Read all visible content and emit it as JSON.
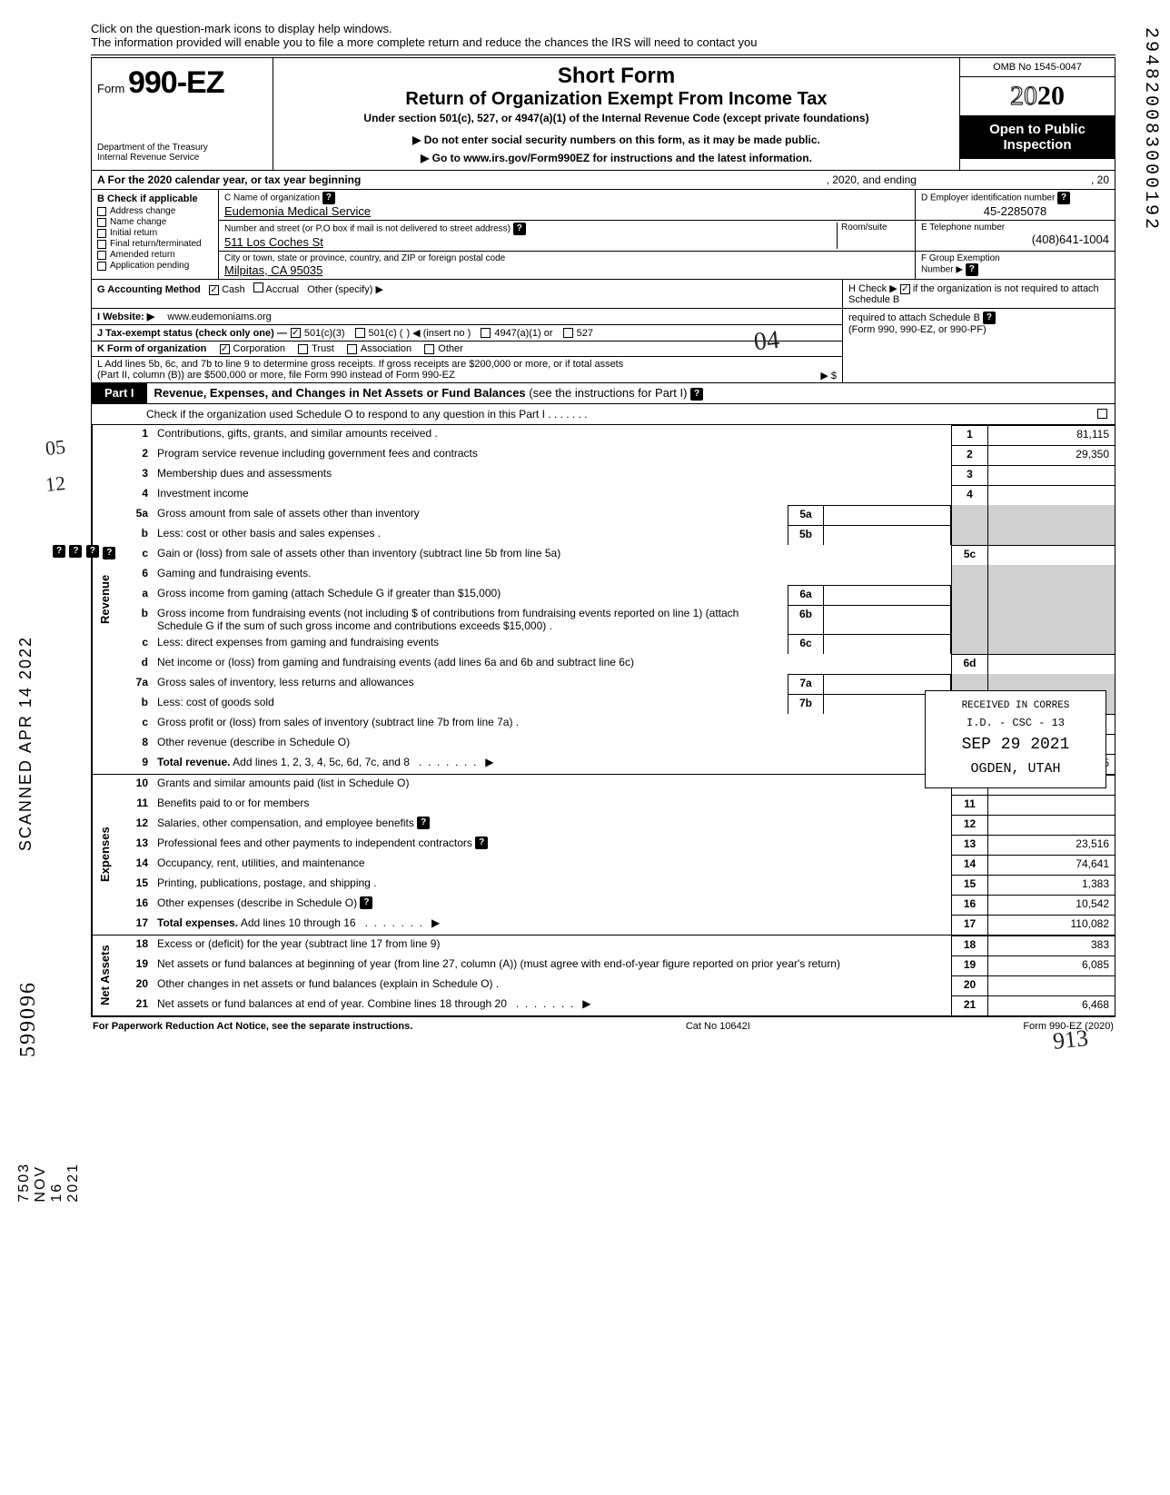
{
  "help_banner_l1": "Click on the question-mark icons to display help windows.",
  "help_banner_l2": "The information provided will enable you to file a more complete return and reduce the chances the IRS will need to contact you",
  "form_prefix": "Form",
  "form_number": "990-EZ",
  "dept1": "Department of the Treasury",
  "dept2": "Internal Revenue Service",
  "title1": "Short Form",
  "title2": "Return of Organization Exempt From Income Tax",
  "title3": "Under section 501(c), 527, or 4947(a)(1) of the Internal Revenue Code (except private foundations)",
  "title4": "▶ Do not enter social security numbers on this form, as it may be made public.",
  "title5": "▶ Go to www.irs.gov/Form990EZ for instructions and the latest information.",
  "omb": "OMB No  1545-0047",
  "year_outline": "20",
  "year_bold": "20",
  "open_pub": "Open to Public Inspection",
  "row_a": "A  For the 2020 calendar year, or tax year beginning",
  "row_a_mid": ", 2020, and ending",
  "row_a_end": ", 20",
  "b_hdr": "B  Check if applicable",
  "b_items": [
    "Address change",
    "Name change",
    "Initial return",
    "Final return/terminated",
    "Amended return",
    "Application pending"
  ],
  "c_lbl": "C  Name of organization",
  "c_val": "Eudemonia Medical Service",
  "c_addr_lbl": "Number and street (or P.O  box if mail is not delivered to street address)",
  "c_room": "Room/suite",
  "c_addr_val": "511 Los Coches St",
  "c_city_lbl": "City or town, state or province, country, and ZIP or foreign postal code",
  "c_city_val": "Milpitas, CA 95035",
  "d_lbl": "D  Employer identification number",
  "d_val": "45-2285078",
  "e_lbl": "E  Telephone number",
  "e_val": "(408)641-1004",
  "f_lbl": "F  Group Exemption",
  "f_lbl2": "Number ▶",
  "g_lbl": "G  Accounting Method",
  "g_cash": "Cash",
  "g_accr": "Accrual",
  "g_other": "Other (specify) ▶",
  "h_txt1": "H  Check ▶",
  "h_txt2": "if the organization is not required to attach Schedule B",
  "h_txt3": "(Form 990, 990-EZ, or 990-PF)",
  "i_lbl": "I   Website: ▶",
  "i_val": "www.eudemoniams.org",
  "j_lbl": "J  Tax-exempt status (check only one) —",
  "j_1": "501(c)(3)",
  "j_2": "501(c) (",
  "j_2b": ")  ◀ (insert no )",
  "j_3": "4947(a)(1) or",
  "j_4": "527",
  "k_lbl": "K  Form of organization",
  "k_1": "Corporation",
  "k_2": "Trust",
  "k_3": "Association",
  "k_4": "Other",
  "l_txt1": "L  Add lines 5b, 6c, and 7b to line 9 to determine gross receipts. If gross receipts are $200,000 or more, or if total assets",
  "l_txt2": "(Part II, column (B)) are $500,000 or more, file Form 990 instead of Form 990-EZ",
  "l_end": "▶   $",
  "part1_tag": "Part I",
  "part1_title": "Revenue, Expenses, and Changes in Net Assets or Fund Balances",
  "part1_sub": "(see the instructions for Part I)",
  "part1_check": "Check if the organization used Schedule O to respond to any question in this Part I .   .   .   .   .   .   .",
  "side_rev": "Revenue",
  "side_exp": "Expenses",
  "side_net": "Net Assets",
  "lines": {
    "1": {
      "no": "1",
      "txt": "Contributions, gifts, grants, and similar amounts received .",
      "rno": "1",
      "val": "81,115"
    },
    "2": {
      "no": "2",
      "txt": "Program service revenue including government fees and contracts",
      "rno": "2",
      "val": "29,350"
    },
    "3": {
      "no": "3",
      "txt": "Membership dues and assessments",
      "rno": "3",
      "val": ""
    },
    "4": {
      "no": "4",
      "txt": "Investment income",
      "rno": "4",
      "val": ""
    },
    "5a": {
      "no": "5a",
      "txt": "Gross amount from sale of assets other than inventory",
      "mno": "5a"
    },
    "5b": {
      "no": "b",
      "txt": "Less: cost or other basis and sales expenses .",
      "mno": "5b"
    },
    "5c": {
      "no": "c",
      "txt": "Gain or (loss) from sale of assets other than inventory (subtract line 5b from line 5a)",
      "rno": "5c",
      "val": ""
    },
    "6": {
      "no": "6",
      "txt": "Gaming and fundraising events."
    },
    "6a": {
      "no": "a",
      "txt": "Gross income from gaming (attach Schedule G if greater than $15,000)",
      "mno": "6a"
    },
    "6b": {
      "no": "b",
      "txt": "Gross income from fundraising events (not including  $                       of contributions from fundraising events reported on line 1) (attach Schedule G if the sum of such gross income and contributions exceeds $15,000) .",
      "mno": "6b"
    },
    "6c": {
      "no": "c",
      "txt": "Less: direct expenses from gaming and fundraising events",
      "mno": "6c"
    },
    "6d": {
      "no": "d",
      "txt": "Net income or (loss) from gaming and fundraising events (add lines 6a and 6b and subtract line 6c)",
      "rno": "6d",
      "val": ""
    },
    "7a": {
      "no": "7a",
      "txt": "Gross sales of inventory, less returns and allowances",
      "mno": "7a"
    },
    "7b": {
      "no": "b",
      "txt": "Less: cost of goods sold",
      "mno": "7b"
    },
    "7c": {
      "no": "c",
      "txt": "Gross profit or (loss) from sales of inventory (subtract line 7b from line 7a) .",
      "rno": "7c",
      "val": ""
    },
    "8": {
      "no": "8",
      "txt": "Other revenue (describe in Schedule O)",
      "rno": "8",
      "val": ""
    },
    "9": {
      "no": "9",
      "txt": "Total revenue. Add lines 1, 2, 3, 4, 5c, 6d, 7c, and 8",
      "bold": true,
      "rno": "•9",
      "val": "110,465",
      "arrow": true
    },
    "10": {
      "no": "10",
      "txt": "Grants and similar amounts paid (list in Schedule O)",
      "rno": "10",
      "val": ""
    },
    "11": {
      "no": "11",
      "txt": "Benefits paid to or for members",
      "rno": "11",
      "val": ""
    },
    "12": {
      "no": "12",
      "txt": "Salaries, other compensation, and employee benefits",
      "rno": "12",
      "val": ""
    },
    "13": {
      "no": "13",
      "txt": "Professional fees and other payments to independent contractors",
      "rno": "13",
      "val": "23,516"
    },
    "14": {
      "no": "14",
      "txt": "Occupancy, rent, utilities, and maintenance",
      "rno": "14",
      "val": "74,641"
    },
    "15": {
      "no": "15",
      "txt": "Printing, publications, postage, and shipping .",
      "rno": "15",
      "val": "1,383"
    },
    "16": {
      "no": "16",
      "txt": "Other expenses (describe in Schedule O)",
      "rno": "16",
      "val": "10,542"
    },
    "17": {
      "no": "17",
      "txt": "Total expenses. Add lines 10 through 16",
      "bold": true,
      "rno": "17",
      "val": "110,082",
      "arrow": true
    },
    "18": {
      "no": "18",
      "txt": "Excess or (deficit) for the year (subtract line 17 from line 9)",
      "rno": "18",
      "val": "383"
    },
    "19": {
      "no": "19",
      "txt": "Net assets or fund balances at beginning of year (from line 27, column (A)) (must agree with end-of-year figure reported on prior year's return)",
      "rno": "19",
      "val": "6,085"
    },
    "20": {
      "no": "20",
      "txt": "Other changes in net assets or fund balances (explain in Schedule O) .",
      "rno": "20",
      "val": ""
    },
    "21": {
      "no": "21",
      "txt": "Net assets or fund balances at end of year. Combine lines 18 through 20",
      "rno": "21",
      "val": "6,468",
      "arrow": true
    }
  },
  "footer_l": "For Paperwork Reduction Act Notice, see the separate instructions.",
  "footer_m": "Cat No  10642I",
  "footer_r": "Form 990-EZ (2020)",
  "stamp_l1": "RECEIVED IN CORRES",
  "stamp_l2": "I.D. - CSC - 13",
  "stamp_l3": "SEP 29 2021",
  "stamp_l4": "OGDEN, UTAH",
  "hand_04": "04",
  "hand_05": "05",
  "hand_12": "12",
  "hand_913": "913",
  "margin_scan": "SCANNED APR 14 2022",
  "margin_date": "7503 NOV 16 2021",
  "margin_num": "599096",
  "side_dln": "294820083000192"
}
